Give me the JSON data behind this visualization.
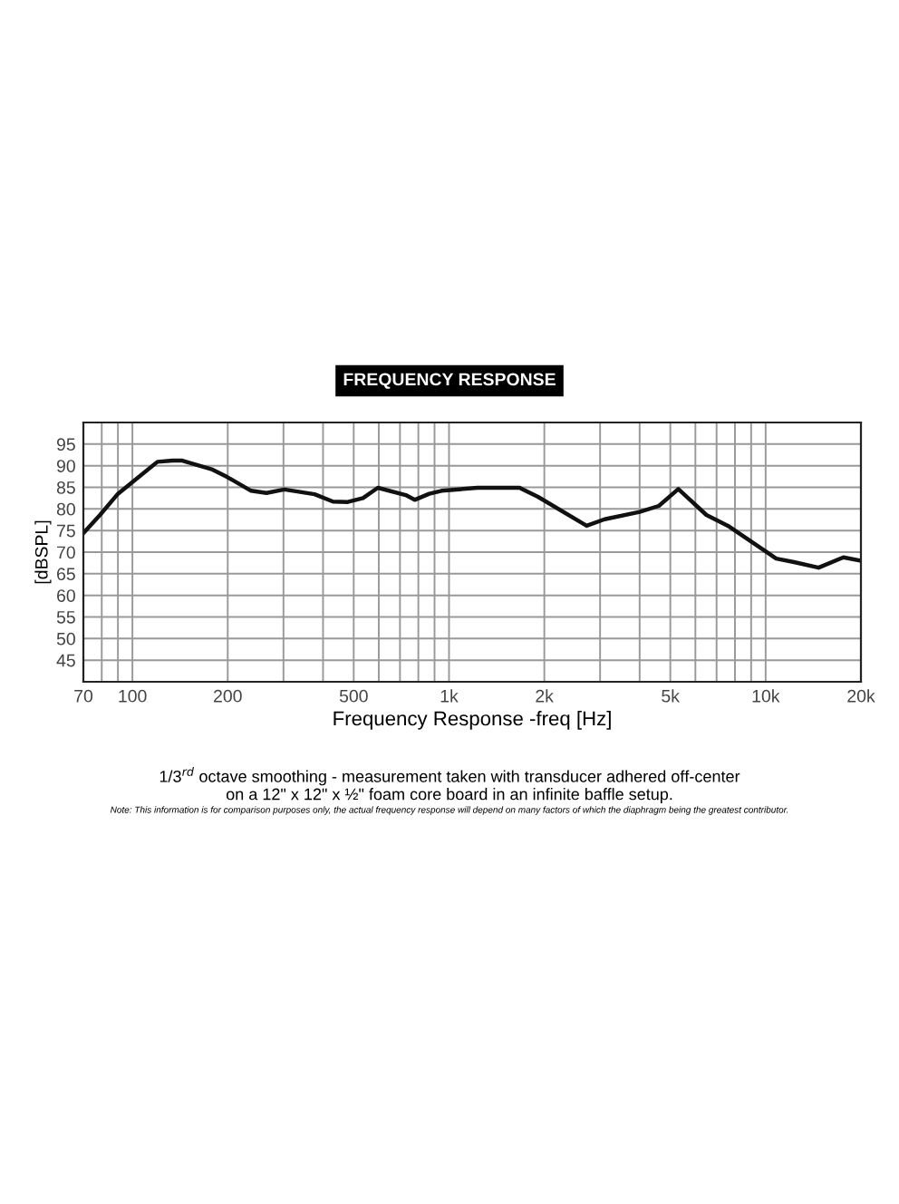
{
  "chart_data": {
    "type": "line",
    "title": "FREQUENCY RESPONSE",
    "xlabel": "Frequency Response -freq [Hz]",
    "ylabel": "[dBSPL]",
    "annotations": [
      "1/3$^{rd}$ octave smoothing - measurement taken with transducer adhered off-center\non a 12\" x 12\" x ½\" foam core board in an infinite baffle setup.",
      "Note: This information is for comparison purposes only, the actual frequency response will depend on many factors of which the diaphragm being the greatest contributor."
    ],
    "log": "x",
    "grid": true,
    "marker": "none",
    "line_style": "solid",
    "xlim": [
      70,
      20000
    ],
    "ylim": [
      40,
      100
    ],
    "xticks": [
      70,
      {
        "value": 80,
        "label": null
      },
      {
        "value": 90,
        "label": null
      },
      100,
      200,
      {
        "value": 300,
        "label": null
      },
      {
        "value": 400,
        "label": null
      },
      500,
      {
        "value": 600,
        "label": null
      },
      {
        "value": 700,
        "label": null
      },
      {
        "value": 800,
        "label": null
      },
      {
        "value": 900,
        "label": null
      },
      {
        "value": 1000,
        "label": "1k"
      },
      {
        "value": 2000,
        "label": "2k"
      },
      {
        "value": 3000,
        "label": null
      },
      {
        "value": 4000,
        "label": null
      },
      {
        "value": 5000,
        "label": "5k"
      },
      {
        "value": 6000,
        "label": null
      },
      {
        "value": 7000,
        "label": null
      },
      {
        "value": 8000,
        "label": null
      },
      {
        "value": 9000,
        "label": null
      },
      {
        "value": 10000,
        "label": "10k"
      },
      {
        "value": 20000,
        "label": "20k"
      }
    ],
    "yticks": [
      45,
      50,
      55,
      60,
      65,
      70,
      75,
      80,
      85,
      90,
      95
    ],
    "series": [
      {
        "color": "#111111",
        "x": [
          70,
          79,
          90,
          100,
          120,
          134,
          143,
          179,
          199,
          237,
          265,
          302,
          376,
          430,
          479,
          535,
          596,
          730,
          779,
          866,
          948,
          1230,
          1670,
          1910,
          2720,
          3100,
          4000,
          4600,
          5300,
          6500,
          7600,
          10000,
          10800,
          12300,
          14700,
          17600,
          20000
        ],
        "values": [
          74.4,
          78.6,
          83.5,
          86.2,
          90.9,
          91.2,
          91.2,
          89.1,
          87.4,
          84.2,
          83.7,
          84.5,
          83.4,
          81.7,
          81.6,
          82.5,
          84.9,
          83.2,
          82.1,
          83.5,
          84.2,
          84.9,
          84.9,
          82.8,
          76.1,
          77.6,
          79.3,
          80.7,
          84.6,
          78.6,
          76.1,
          70.2,
          68.5,
          67.7,
          66.4,
          68.8,
          68.0
        ]
      }
    ]
  }
}
